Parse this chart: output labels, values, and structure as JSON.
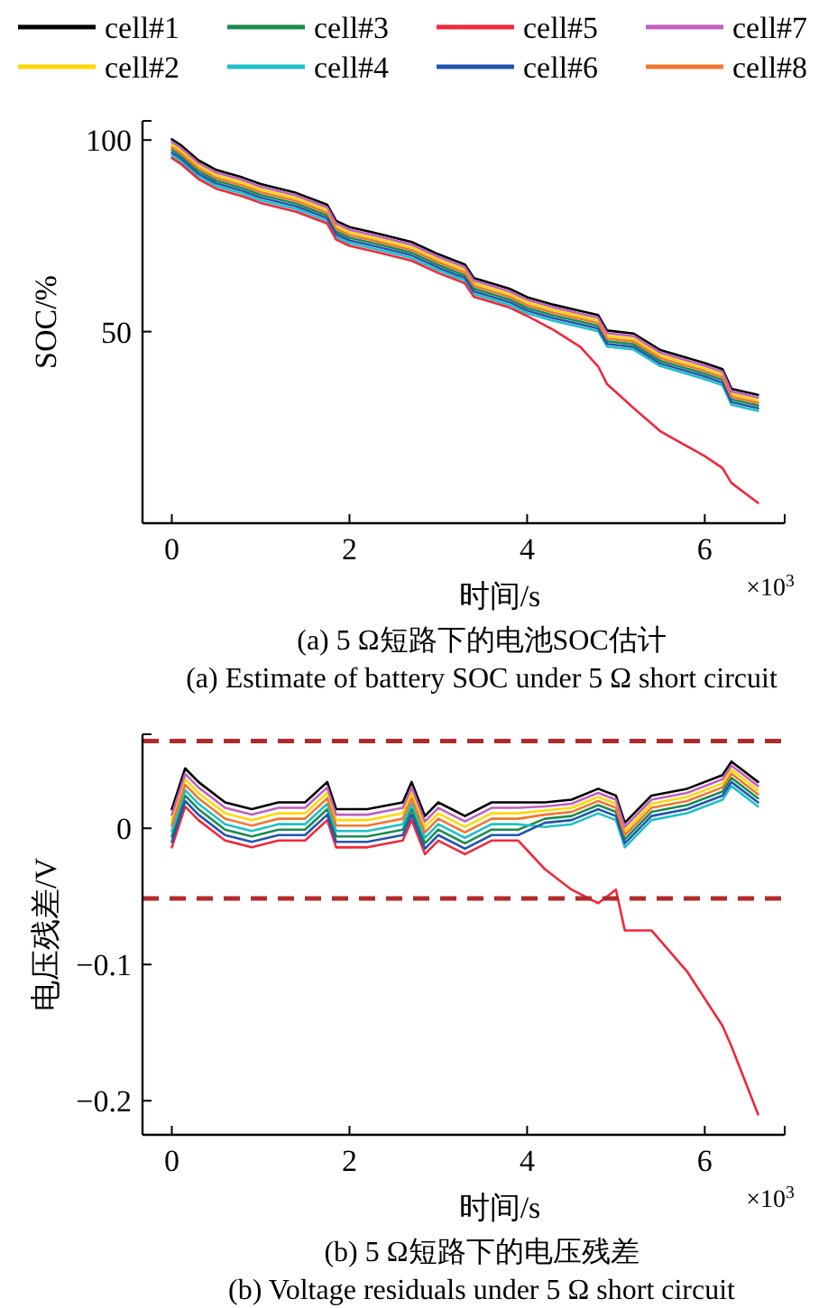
{
  "chart_data": [
    {
      "type": "line",
      "title": "(a) 5 Ω短路下的电池SOC估计",
      "subtitle": "(a) Estimate of battery SOC under 5 Ω short circuit",
      "xlabel": "时间/s",
      "ylabel": "SOC/%",
      "annotations": [
        "×10$^{3}$"
      ],
      "x": [
        0,
        0.1,
        0.3,
        0.5,
        0.8,
        1.0,
        1.4,
        1.75,
        1.85,
        2.0,
        2.3,
        2.7,
        3.0,
        3.3,
        3.4,
        3.8,
        4.0,
        4.3,
        4.6,
        4.8,
        4.9,
        5.2,
        5.5,
        6.0,
        6.2,
        6.3,
        6.6
      ],
      "xlim": [
        -0.33,
        6.9
      ],
      "xticks": [
        0,
        2,
        4,
        6
      ],
      "ylim": [
        0,
        105
      ],
      "yticks": [
        50,
        100
      ],
      "legend": "top",
      "grid": false,
      "line_style": "solid",
      "marker": "none",
      "series": [
        {
          "name": "cell#1",
          "color": "#000000",
          "values": [
            100.2,
            98.7,
            94.7,
            92.2,
            90.2,
            88.5,
            86.2,
            83.1,
            78.9,
            77.3,
            75.7,
            73.4,
            70.2,
            67.5,
            64,
            61.2,
            59,
            57,
            55.4,
            54.3,
            50.3,
            49.5,
            45.2,
            41.8,
            40.2,
            35.1,
            33.5
          ]
        },
        {
          "name": "cell#2",
          "color": "#ffd700",
          "values": [
            98.8,
            97.3,
            93.3,
            90.8,
            88.8,
            87.1,
            84.8,
            81.7,
            77.5,
            75.9,
            74.3,
            72,
            68.8,
            66.1,
            62.6,
            59.8,
            57.6,
            55.6,
            54,
            52.9,
            48.9,
            48.1,
            43.8,
            40.4,
            38.8,
            33.7,
            32.1
          ]
        },
        {
          "name": "cell#3",
          "color": "#1a8c4e",
          "values": [
            97.4,
            95.9,
            91.9,
            89.4,
            87.4,
            85.7,
            83.4,
            80.3,
            76.1,
            74.5,
            72.9,
            70.6,
            67.4,
            64.7,
            61.2,
            58.4,
            56.2,
            54.2,
            52.6,
            51.5,
            47.5,
            46.7,
            42.4,
            39,
            37.4,
            32.3,
            30.7
          ]
        },
        {
          "name": "cell#4",
          "color": "#1fc0c8",
          "values": [
            96,
            94.5,
            90.5,
            88,
            86,
            84.3,
            82,
            78.9,
            74.7,
            73.1,
            71.5,
            69.2,
            66,
            63.3,
            59.8,
            57,
            54.8,
            52.8,
            51.2,
            50.1,
            46.1,
            45.3,
            41,
            37.6,
            36,
            30.9,
            29.3
          ]
        },
        {
          "name": "cell#5",
          "color": "#f0283c",
          "values": [
            95.3,
            93.8,
            89.8,
            87.3,
            85.3,
            83.6,
            81.3,
            78.2,
            74,
            72.4,
            70.8,
            68.5,
            65.3,
            62.6,
            59.1,
            56.3,
            54.1,
            50.4,
            46,
            40.9,
            36.3,
            30,
            24,
            17.5,
            14.4,
            10.5,
            5.3
          ]
        },
        {
          "name": "cell#6",
          "color": "#2255b0",
          "values": [
            96.7,
            95.2,
            91.2,
            88.7,
            86.7,
            85,
            82.7,
            79.6,
            75.4,
            73.8,
            72.2,
            69.9,
            66.7,
            64,
            60.5,
            57.7,
            55.5,
            53.5,
            51.9,
            50.8,
            46.8,
            46,
            41.7,
            38.3,
            36.7,
            31.6,
            30
          ]
        },
        {
          "name": "cell#7",
          "color": "#c060c0",
          "values": [
            99.5,
            98,
            94,
            91.5,
            89.5,
            87.8,
            85.5,
            82.4,
            78.2,
            76.6,
            75,
            72.7,
            69.5,
            66.8,
            63.3,
            60.5,
            58.3,
            56.3,
            54.7,
            53.6,
            49.6,
            48.8,
            44.5,
            41.1,
            39.5,
            34.4,
            32.8
          ]
        },
        {
          "name": "cell#8",
          "color": "#f07830",
          "values": [
            98.1,
            96.6,
            92.6,
            90.1,
            88.1,
            86.4,
            84.1,
            81,
            76.8,
            75.2,
            73.6,
            71.3,
            68.1,
            65.4,
            61.9,
            59.1,
            56.9,
            54.9,
            53.3,
            52.2,
            48.2,
            47.4,
            43.1,
            39.7,
            38.1,
            33,
            31.4
          ]
        }
      ]
    },
    {
      "type": "line",
      "title": "(b) 5 Ω短路下的电压残差",
      "subtitle": "(b) Voltage residuals under 5 Ω short circuit",
      "xlabel": "时间/s",
      "ylabel": "电压残差/V",
      "annotations": [
        "×10$^{3}$"
      ],
      "x": [
        0,
        0.15,
        0.3,
        0.6,
        0.9,
        1.2,
        1.5,
        1.75,
        1.85,
        2.2,
        2.6,
        2.7,
        2.85,
        3.0,
        3.3,
        3.6,
        3.9,
        4.2,
        4.5,
        4.8,
        5.0,
        5.1,
        5.4,
        5.8,
        6.2,
        6.3,
        6.6
      ],
      "xlim": [
        -0.33,
        6.9
      ],
      "xticks": [
        0,
        2,
        4,
        6
      ],
      "ylim": [
        -0.225,
        0.069
      ],
      "yticks": [
        {
          "value": -0.2,
          "label": "−0.2"
        },
        {
          "value": -0.1,
          "label": "−0.1"
        },
        0
      ],
      "grid": false,
      "line_style": "solid",
      "marker": "none",
      "ref_lines": [
        {
          "axis": "y",
          "value": 0.064,
          "label": null,
          "color": "#b22a2a",
          "line_style": "dashed"
        },
        {
          "axis": "y",
          "value": -0.0515,
          "label": null,
          "color": "#b22a2a",
          "line_style": "dashed"
        }
      ],
      "series": [
        {
          "color": "#000000",
          "values": [
            0.014,
            0.044,
            0.034,
            0.019,
            0.014,
            0.019,
            0.019,
            0.034,
            0.014,
            0.014,
            0.019,
            0.034,
            0.009,
            0.019,
            0.009,
            0.019,
            0.019,
            0.019,
            0.021,
            0.029,
            0.024,
            0.004,
            0.024,
            0.029,
            0.039,
            0.049,
            0.034
          ]
        },
        {
          "color": "#ffd700",
          "values": [
            0.006,
            0.036,
            0.026,
            0.011,
            0.006,
            0.011,
            0.011,
            0.026,
            0.006,
            0.006,
            0.011,
            0.026,
            0.001,
            0.011,
            0.001,
            0.011,
            0.011,
            0.013,
            0.015,
            0.023,
            0.018,
            -0.002,
            0.018,
            0.023,
            0.033,
            0.043,
            0.028
          ]
        },
        {
          "color": "#1a8c4e",
          "values": [
            -0.006,
            0.024,
            0.014,
            -0.001,
            -0.006,
            -0.001,
            -0.001,
            0.014,
            -0.006,
            -0.006,
            -0.001,
            0.014,
            -0.011,
            -0.001,
            -0.011,
            -0.001,
            -0.001,
            0.007,
            0.009,
            0.017,
            0.012,
            -0.008,
            0.012,
            0.017,
            0.027,
            0.037,
            0.022
          ]
        },
        {
          "color": "#1fc0c8",
          "values": [
            -0.002,
            0.028,
            0.018,
            0.003,
            -0.002,
            0.003,
            0.003,
            0.018,
            -0.002,
            -0.002,
            0.003,
            0.018,
            -0.007,
            0.003,
            -0.007,
            0.003,
            0.003,
            0.001,
            0.003,
            0.011,
            0.006,
            -0.014,
            0.006,
            0.011,
            0.021,
            0.031,
            0.016
          ]
        },
        {
          "color": "#f0283c",
          "values": [
            -0.014,
            0.016,
            0.006,
            -0.009,
            -0.014,
            -0.009,
            -0.009,
            0.006,
            -0.014,
            -0.014,
            -0.009,
            0.006,
            -0.019,
            -0.009,
            -0.019,
            -0.009,
            -0.009,
            -0.03,
            -0.045,
            -0.055,
            -0.045,
            -0.075,
            -0.075,
            -0.105,
            -0.145,
            -0.16,
            -0.21
          ]
        },
        {
          "color": "#2255b0",
          "values": [
            -0.01,
            0.02,
            0.01,
            -0.005,
            -0.01,
            -0.005,
            -0.005,
            0.01,
            -0.01,
            -0.01,
            -0.005,
            0.01,
            -0.015,
            -0.005,
            -0.015,
            -0.005,
            -0.005,
            0.004,
            0.006,
            0.014,
            0.009,
            -0.011,
            0.009,
            0.014,
            0.024,
            0.034,
            0.019
          ]
        },
        {
          "color": "#c060c0",
          "values": [
            0.01,
            0.04,
            0.03,
            0.015,
            0.01,
            0.015,
            0.015,
            0.03,
            0.01,
            0.01,
            0.015,
            0.03,
            0.005,
            0.015,
            0.005,
            0.015,
            0.015,
            0.016,
            0.018,
            0.026,
            0.021,
            0.001,
            0.021,
            0.026,
            0.036,
            0.046,
            0.031
          ]
        },
        {
          "color": "#f07830",
          "values": [
            0.002,
            0.032,
            0.022,
            0.007,
            0.002,
            0.007,
            0.007,
            0.022,
            0.002,
            0.002,
            0.007,
            0.022,
            -0.003,
            0.007,
            -0.003,
            0.007,
            0.007,
            0.01,
            0.012,
            0.02,
            0.015,
            -0.005,
            0.015,
            0.02,
            0.03,
            0.04,
            0.025
          ]
        }
      ]
    }
  ]
}
